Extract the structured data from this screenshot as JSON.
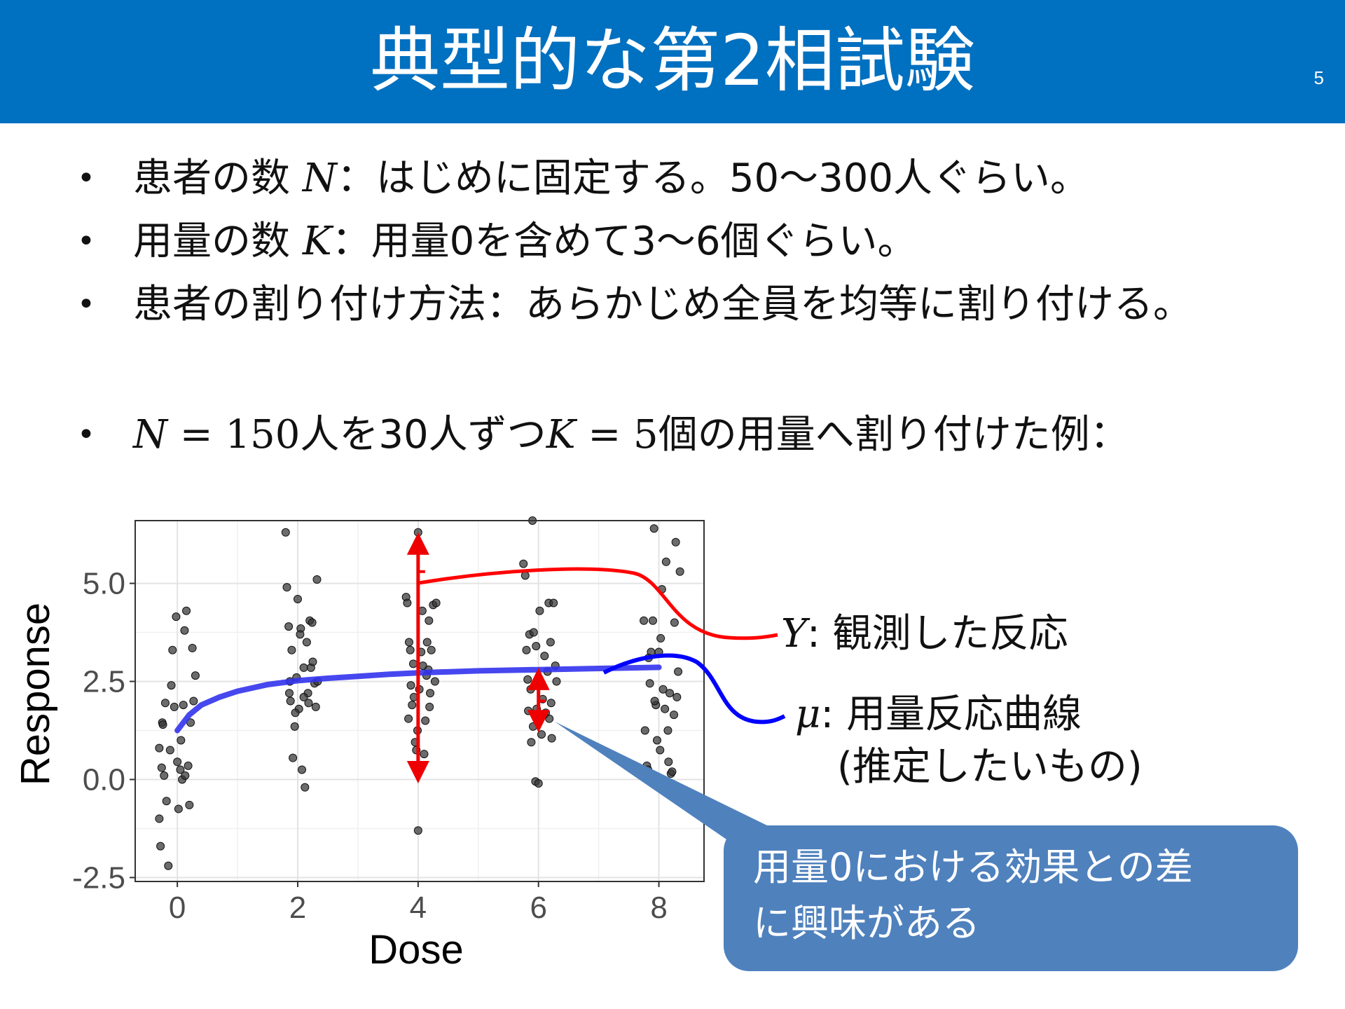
{
  "slide": {
    "title": "典型的な第2相試験",
    "page_number": "5"
  },
  "bullets": [
    {
      "math": "N",
      "text_before": "患者の数 ",
      "text_after": "：はじめに固定する。50～300人ぐらい。"
    },
    {
      "math": "K",
      "text_before": "用量の数 ",
      "text_after": "：用量0を含めて3～6個ぐらい。"
    },
    {
      "text": "患者の割り付け方法：あらかじめ全員を均等に割り付ける。"
    },
    {
      "part1_math": "N",
      "part2": " = 150",
      "part3": "人を30人ずつ",
      "part4_math": "K",
      "part5": " = 5",
      "part6": "個の用量へ割り付けた例："
    }
  ],
  "annotations": {
    "y_symbol": "Y",
    "y_text": ": 観測した反応",
    "mu_symbol": "μ",
    "mu_text": ": 用量反応曲線",
    "mu_sub": "(推定したいもの)",
    "callout_line1": "用量0における効果との差",
    "callout_line2": "に興味がある",
    "y_color": "#ff0000",
    "mu_color": "#0000ff",
    "callout_color": "#4f81bd"
  },
  "chart_data": {
    "type": "scatter",
    "xlabel": "Dose",
    "ylabel": "Response",
    "xlim": [
      -0.7,
      8.75
    ],
    "ylim": [
      -2.6,
      6.6
    ],
    "x_ticks": [
      0,
      2,
      4,
      6,
      8
    ],
    "x_tick_labels": [
      "0",
      "2",
      "4",
      "6",
      "8"
    ],
    "y_ticks": [
      -2.5,
      0.0,
      2.5,
      5.0
    ],
    "y_tick_labels": [
      "-2.5",
      "0.0",
      "2.5",
      "5.0"
    ],
    "grid": true,
    "point_color": "#333333",
    "curve_color": "#3333ee",
    "arrow_color": "#ee0000",
    "points": [
      [
        -0.3,
        -1.0
      ],
      [
        -0.28,
        -1.7
      ],
      [
        -0.25,
        1.45
      ],
      [
        -0.24,
        1.4
      ],
      [
        -0.3,
        0.8
      ],
      [
        -0.22,
        0.1
      ],
      [
        -0.18,
        -0.55
      ],
      [
        -0.15,
        -2.2
      ],
      [
        -0.12,
        0.75
      ],
      [
        -0.1,
        2.4
      ],
      [
        -0.08,
        3.3
      ],
      [
        -0.05,
        1.85
      ],
      [
        -0.02,
        4.15
      ],
      [
        0.0,
        0.45
      ],
      [
        0.02,
        -0.75
      ],
      [
        0.05,
        0.25
      ],
      [
        0.08,
        0.0
      ],
      [
        0.1,
        1.9
      ],
      [
        0.12,
        3.8
      ],
      [
        0.13,
        0.1
      ],
      [
        0.15,
        4.3
      ],
      [
        0.18,
        0.35
      ],
      [
        0.2,
        -0.65
      ],
      [
        0.22,
        1.45
      ],
      [
        0.25,
        3.35
      ],
      [
        0.27,
        2.0
      ],
      [
        0.3,
        2.65
      ],
      [
        -0.2,
        1.95
      ],
      [
        0.06,
        1.0
      ],
      [
        -0.26,
        0.3
      ],
      [
        1.8,
        6.3
      ],
      [
        1.82,
        4.9
      ],
      [
        1.85,
        3.9
      ],
      [
        1.87,
        2.5
      ],
      [
        1.88,
        2.0
      ],
      [
        1.9,
        3.3
      ],
      [
        1.92,
        0.55
      ],
      [
        1.95,
        1.35
      ],
      [
        1.98,
        2.6
      ],
      [
        2.0,
        4.6
      ],
      [
        2.02,
        1.8
      ],
      [
        2.05,
        3.85
      ],
      [
        2.07,
        0.25
      ],
      [
        2.1,
        2.85
      ],
      [
        2.12,
        -0.2
      ],
      [
        2.15,
        3.5
      ],
      [
        2.17,
        2.2
      ],
      [
        2.18,
        1.95
      ],
      [
        2.2,
        4.05
      ],
      [
        2.22,
        2.85
      ],
      [
        2.25,
        3.0
      ],
      [
        2.28,
        2.45
      ],
      [
        2.3,
        1.85
      ],
      [
        2.32,
        5.1
      ],
      [
        2.33,
        2.5
      ],
      [
        1.86,
        2.2
      ],
      [
        2.04,
        3.7
      ],
      [
        2.24,
        4.0
      ],
      [
        1.96,
        1.7
      ],
      [
        2.1,
        2.1
      ],
      [
        3.8,
        4.65
      ],
      [
        3.82,
        4.5
      ],
      [
        3.85,
        3.5
      ],
      [
        3.87,
        3.3
      ],
      [
        3.88,
        2.4
      ],
      [
        3.9,
        1.9
      ],
      [
        3.92,
        2.95
      ],
      [
        3.95,
        0.95
      ],
      [
        3.97,
        0.75
      ],
      [
        4.0,
        6.3
      ],
      [
        4.0,
        -1.3
      ],
      [
        4.02,
        2.3
      ],
      [
        4.05,
        3.25
      ],
      [
        4.07,
        4.3
      ],
      [
        4.1,
        0.65
      ],
      [
        4.12,
        1.5
      ],
      [
        4.15,
        3.5
      ],
      [
        4.17,
        2.8
      ],
      [
        4.18,
        4.05
      ],
      [
        4.2,
        2.2
      ],
      [
        4.22,
        3.3
      ],
      [
        4.25,
        4.45
      ],
      [
        4.28,
        2.5
      ],
      [
        4.3,
        4.5
      ],
      [
        3.84,
        1.55
      ],
      [
        3.93,
        2.1
      ],
      [
        4.08,
        2.9
      ],
      [
        4.19,
        1.85
      ],
      [
        3.99,
        1.25
      ],
      [
        4.14,
        2.65
      ],
      [
        5.75,
        5.5
      ],
      [
        5.78,
        5.2
      ],
      [
        5.8,
        3.3
      ],
      [
        5.82,
        2.55
      ],
      [
        5.85,
        3.7
      ],
      [
        5.87,
        2.3
      ],
      [
        5.88,
        0.95
      ],
      [
        5.9,
        6.6
      ],
      [
        5.92,
        3.75
      ],
      [
        5.95,
        -0.05
      ],
      [
        5.97,
        1.8
      ],
      [
        6.0,
        -0.1
      ],
      [
        6.02,
        4.3
      ],
      [
        6.05,
        1.15
      ],
      [
        6.07,
        2.05
      ],
      [
        6.1,
        3.15
      ],
      [
        6.12,
        1.7
      ],
      [
        6.15,
        2.75
      ],
      [
        6.17,
        4.5
      ],
      [
        6.18,
        1.55
      ],
      [
        6.2,
        3.5
      ],
      [
        6.22,
        1.05
      ],
      [
        6.25,
        4.5
      ],
      [
        6.28,
        2.9
      ],
      [
        6.3,
        2.5
      ],
      [
        5.83,
        1.75
      ],
      [
        5.96,
        3.4
      ],
      [
        6.09,
        1.65
      ],
      [
        6.21,
        1.95
      ],
      [
        5.91,
        1.35
      ],
      [
        7.75,
        4.05
      ],
      [
        7.77,
        1.25
      ],
      [
        7.8,
        0.35
      ],
      [
        7.82,
        0.25
      ],
      [
        7.85,
        2.45
      ],
      [
        7.87,
        3.25
      ],
      [
        7.9,
        4.05
      ],
      [
        7.92,
        6.4
      ],
      [
        7.95,
        1.9
      ],
      [
        7.97,
        1.0
      ],
      [
        8.0,
        3.25
      ],
      [
        8.02,
        0.75
      ],
      [
        8.05,
        4.85
      ],
      [
        8.07,
        2.3
      ],
      [
        8.1,
        1.8
      ],
      [
        8.12,
        5.55
      ],
      [
        8.15,
        1.25
      ],
      [
        8.18,
        2.2
      ],
      [
        8.2,
        0.15
      ],
      [
        8.22,
        0.2
      ],
      [
        8.25,
        1.65
      ],
      [
        8.28,
        6.05
      ],
      [
        8.3,
        2.1
      ],
      [
        8.32,
        2.75
      ],
      [
        8.35,
        5.3
      ],
      [
        7.83,
        3.1
      ],
      [
        8.03,
        3.6
      ],
      [
        8.16,
        0.45
      ],
      [
        7.93,
        2.0
      ],
      [
        8.26,
        4.0
      ]
    ],
    "curve": [
      [
        0.0,
        1.25
      ],
      [
        0.2,
        1.65
      ],
      [
        0.4,
        1.9
      ],
      [
        0.7,
        2.1
      ],
      [
        1.0,
        2.25
      ],
      [
        1.5,
        2.42
      ],
      [
        2.0,
        2.52
      ],
      [
        2.5,
        2.58
      ],
      [
        3.0,
        2.63
      ],
      [
        3.5,
        2.68
      ],
      [
        4.0,
        2.72
      ],
      [
        5.0,
        2.77
      ],
      [
        6.0,
        2.8
      ],
      [
        7.0,
        2.83
      ],
      [
        8.0,
        2.86
      ]
    ],
    "arrows": [
      {
        "x": 4,
        "y_from": 5.3,
        "y_top": 6.3,
        "y_bottom": -0.1
      },
      {
        "x": 6,
        "y_from": 2.0,
        "y_top": 2.85,
        "y_bottom": 1.2
      }
    ]
  }
}
